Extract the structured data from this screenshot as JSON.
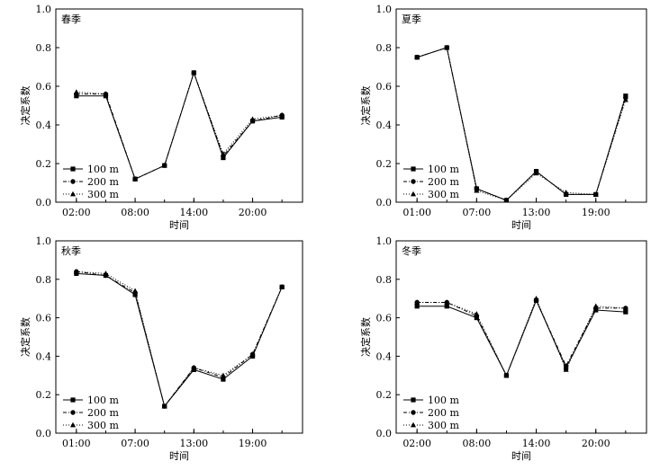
{
  "figure": {
    "panels_order": [
      "spring",
      "summer",
      "autumn",
      "winter"
    ]
  },
  "chart_data": [
    {
      "id": "spring",
      "type": "line",
      "title": "春季",
      "xlabel": "时间",
      "ylabel": "决定系数",
      "ylim": [
        0,
        1.0
      ],
      "yticks": [
        "0.0",
        "0.2",
        "0.4",
        "0.6",
        "0.8",
        "1.0"
      ],
      "x": [
        1,
        2,
        3,
        4,
        5,
        6,
        7,
        8
      ],
      "xlim": [
        0.3,
        8.7
      ],
      "xtick_positions": [
        1,
        3,
        5,
        7
      ],
      "xtick_labels": [
        "02:00",
        "08:00",
        "14:00",
        "20:00"
      ],
      "legend": [
        "100 m",
        "200 m",
        "300 m"
      ],
      "series": [
        {
          "name": "100 m",
          "values": [
            0.55,
            0.55,
            0.12,
            0.19,
            0.67,
            0.23,
            0.42,
            0.44
          ]
        },
        {
          "name": "200 m",
          "values": [
            0.56,
            0.56,
            0.12,
            0.19,
            0.67,
            0.24,
            0.42,
            0.45
          ]
        },
        {
          "name": "300 m",
          "values": [
            0.57,
            0.56,
            0.12,
            0.19,
            0.67,
            0.25,
            0.43,
            0.45
          ]
        }
      ]
    },
    {
      "id": "summer",
      "type": "line",
      "title": "夏季",
      "xlabel": "时间",
      "ylabel": "决定系数",
      "ylim": [
        0,
        1.0
      ],
      "yticks": [
        "0.0",
        "0.2",
        "0.4",
        "0.6",
        "0.8",
        "1.0"
      ],
      "x": [
        1,
        2,
        3,
        4,
        5,
        6,
        7,
        8
      ],
      "xlim": [
        0.3,
        8.7
      ],
      "xtick_positions": [
        1,
        3,
        5,
        7
      ],
      "xtick_labels": [
        "01:00",
        "07:00",
        "13:00",
        "19:00"
      ],
      "legend": [
        "100 m",
        "200 m",
        "300 m"
      ],
      "series": [
        {
          "name": "100 m",
          "values": [
            0.75,
            0.8,
            0.07,
            0.01,
            0.16,
            0.04,
            0.04,
            0.55
          ]
        },
        {
          "name": "200 m",
          "values": [
            0.75,
            0.8,
            0.07,
            0.01,
            0.16,
            0.04,
            0.04,
            0.54
          ]
        },
        {
          "name": "300 m",
          "values": [
            0.75,
            0.8,
            0.06,
            0.01,
            0.15,
            0.05,
            0.04,
            0.53
          ]
        }
      ]
    },
    {
      "id": "autumn",
      "type": "line",
      "title": "秋季",
      "xlabel": "时间",
      "ylabel": "决定系数",
      "ylim": [
        0,
        1.0
      ],
      "yticks": [
        "0.0",
        "0.2",
        "0.4",
        "0.6",
        "0.8",
        "1.0"
      ],
      "x": [
        1,
        2,
        3,
        4,
        5,
        6,
        7,
        8
      ],
      "xlim": [
        0.3,
        8.7
      ],
      "xtick_positions": [
        1,
        3,
        5,
        7
      ],
      "xtick_labels": [
        "01:00",
        "07:00",
        "13:00",
        "19:00"
      ],
      "legend": [
        "100 m",
        "200 m",
        "300 m"
      ],
      "series": [
        {
          "name": "100 m",
          "values": [
            0.83,
            0.82,
            0.72,
            0.14,
            0.33,
            0.28,
            0.4,
            0.76
          ]
        },
        {
          "name": "200 m",
          "values": [
            0.84,
            0.82,
            0.73,
            0.14,
            0.34,
            0.29,
            0.41,
            0.76
          ]
        },
        {
          "name": "300 m",
          "values": [
            0.84,
            0.83,
            0.74,
            0.14,
            0.34,
            0.3,
            0.41,
            0.76
          ]
        }
      ]
    },
    {
      "id": "winter",
      "type": "line",
      "title": "冬季",
      "xlabel": "时间",
      "ylabel": "决定系数",
      "ylim": [
        0,
        1.0
      ],
      "yticks": [
        "0.0",
        "0.2",
        "0.4",
        "0.6",
        "0.8",
        "1.0"
      ],
      "x": [
        1,
        2,
        3,
        4,
        5,
        6,
        7,
        8
      ],
      "xlim": [
        0.3,
        8.7
      ],
      "xtick_positions": [
        1,
        3,
        5,
        7
      ],
      "xtick_labels": [
        "02:00",
        "08:00",
        "14:00",
        "20:00"
      ],
      "legend": [
        "100 m",
        "200 m",
        "300 m"
      ],
      "series": [
        {
          "name": "100 m",
          "values": [
            0.66,
            0.66,
            0.6,
            0.3,
            0.69,
            0.34,
            0.64,
            0.63
          ]
        },
        {
          "name": "200 m",
          "values": [
            0.68,
            0.68,
            0.61,
            0.3,
            0.69,
            0.35,
            0.65,
            0.65
          ]
        },
        {
          "name": "300 m",
          "values": [
            0.68,
            0.68,
            0.62,
            0.3,
            0.7,
            0.33,
            0.66,
            0.65
          ]
        }
      ]
    }
  ]
}
